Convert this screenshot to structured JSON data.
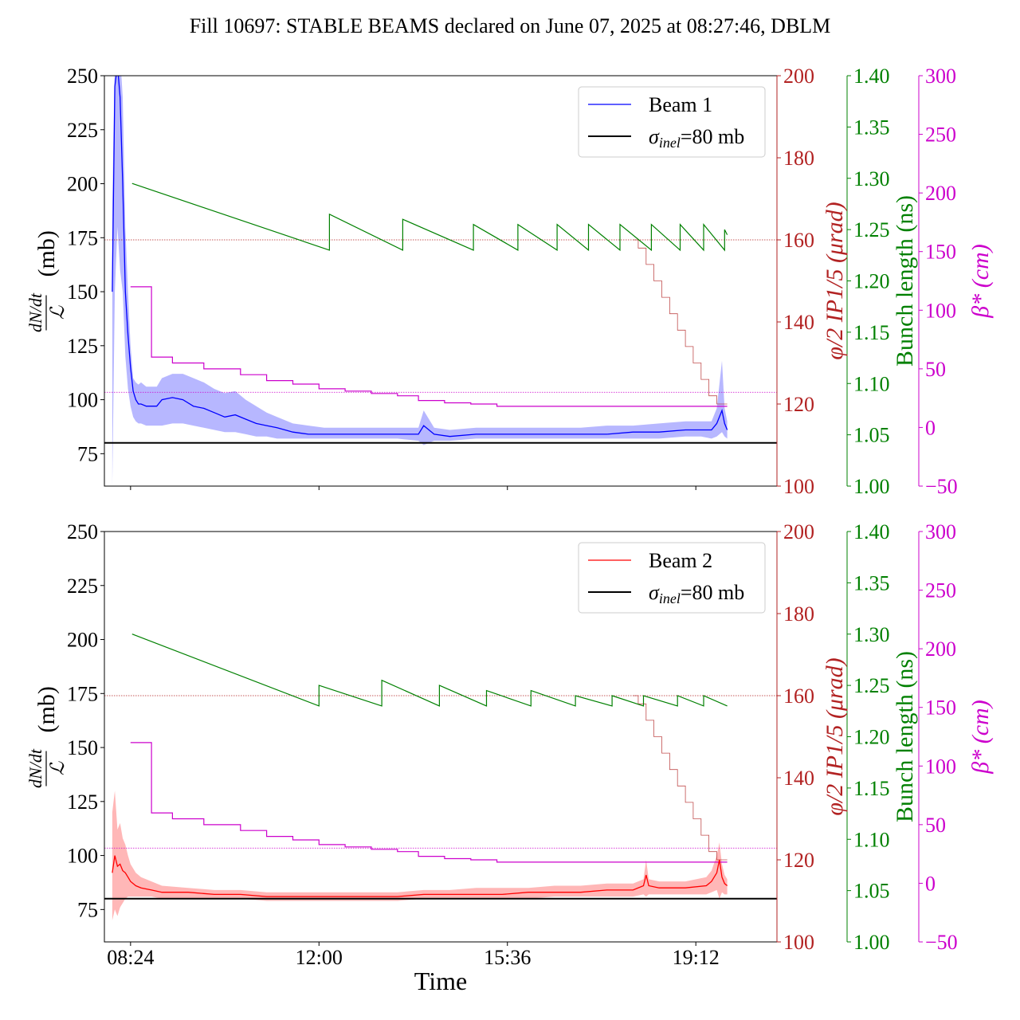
{
  "title": "Fill 10697: STABLE BEAMS declared on June 07, 2025 at 08:27:46, DBLM",
  "xlabel": "Time",
  "xtick_labels": [
    "08:24",
    "12:00",
    "15:36",
    "19:12"
  ],
  "colors": {
    "beam1": "#0000ff",
    "beam1_band": "#9999ff",
    "beam2": "#ff0000",
    "beam2_band": "#ff9999",
    "sigma": "#000000",
    "crossing": "#b22222",
    "bunch": "#008000",
    "beta": "#cc00cc"
  },
  "chart_data": [
    {
      "panel": "top",
      "type": "line",
      "x_unit": "hours (decimal time of day)",
      "xlim": [
        7.9,
        20.75
      ],
      "xticks": [
        8.4,
        12.0,
        15.6,
        19.2
      ],
      "ylabel": "dN/dt / L (mb)",
      "ylim": [
        60,
        250
      ],
      "yticks": [
        75,
        100,
        125,
        150,
        175,
        200,
        225,
        250
      ],
      "legend": {
        "placement": "top-right",
        "beam_label": "Beam 1",
        "sigma_label": "=80 mb"
      },
      "sigma_inel": 80,
      "beam": {
        "name": "Beam 1",
        "x": [
          8.05,
          8.1,
          8.15,
          8.2,
          8.25,
          8.3,
          8.35,
          8.4,
          8.45,
          8.5,
          8.55,
          8.6,
          8.7,
          8.8,
          8.9,
          9.0,
          9.2,
          9.4,
          9.6,
          9.8,
          10.0,
          10.2,
          10.4,
          10.6,
          10.8,
          11.0,
          11.2,
          11.5,
          11.8,
          12.1,
          12.5,
          13.0,
          13.5,
          13.9,
          14.0,
          14.2,
          14.5,
          15.0,
          15.5,
          16.0,
          16.5,
          17.0,
          17.5,
          18.0,
          18.5,
          19.0,
          19.3,
          19.5,
          19.6,
          19.7,
          19.75,
          19.8
        ],
        "values": [
          150,
          245,
          255,
          240,
          200,
          150,
          130,
          115,
          104,
          100,
          98,
          98,
          97,
          97,
          97,
          100,
          101,
          100,
          97,
          96,
          94,
          92,
          93,
          91,
          89,
          88,
          87,
          85,
          84,
          84,
          84,
          84,
          84,
          84,
          88,
          84,
          83,
          84,
          84,
          84,
          84,
          84,
          84,
          85,
          85,
          86,
          86,
          86,
          89,
          95,
          89,
          86
        ],
        "band_upper": [
          190,
          260,
          260,
          260,
          240,
          180,
          150,
          125,
          110,
          108,
          107,
          108,
          106,
          106,
          106,
          110,
          112,
          112,
          110,
          108,
          105,
          103,
          104,
          100,
          97,
          94,
          92,
          89,
          88,
          87,
          87,
          87,
          87,
          87,
          95,
          87,
          86,
          87,
          87,
          87,
          87,
          87,
          88,
          88,
          89,
          90,
          90,
          90,
          96,
          118,
          96,
          90
        ],
        "band_lower": [
          60,
          150,
          180,
          160,
          150,
          120,
          105,
          97,
          92,
          90,
          89,
          89,
          88,
          88,
          88,
          88,
          89,
          89,
          88,
          87,
          86,
          85,
          85,
          84,
          83,
          83,
          82,
          82,
          82,
          82,
          82,
          82,
          82,
          81,
          79,
          81,
          81,
          82,
          82,
          82,
          82,
          82,
          82,
          82,
          82,
          83,
          83,
          82,
          83,
          85,
          83,
          82
        ]
      },
      "crossing_angle": {
        "axis_label": "φ/2 IP1/5 (μrad)",
        "ylim": [
          100,
          200
        ],
        "yticks": [
          100,
          120,
          140,
          160,
          180,
          200
        ],
        "reference": 160,
        "x": [
          18.0,
          18.1,
          18.25,
          18.4,
          18.55,
          18.7,
          18.85,
          19.0,
          19.15,
          19.3,
          19.45,
          19.6,
          19.75,
          19.8
        ],
        "values": [
          160,
          158,
          154,
          150,
          146,
          142,
          138,
          134,
          130,
          126,
          122,
          120,
          120,
          120
        ]
      },
      "bunch_length": {
        "axis_label": "Bunch length (ns)",
        "ylim": [
          1.0,
          1.4
        ],
        "yticks": [
          1.0,
          1.05,
          1.1,
          1.15,
          1.2,
          1.25,
          1.3,
          1.35,
          1.4
        ],
        "segments": [
          {
            "x": [
              8.43,
              12.2
            ],
            "values": [
              1.295,
              1.23
            ]
          },
          {
            "x": [
              12.2,
              13.6
            ],
            "values": [
              1.265,
              1.23
            ]
          },
          {
            "x": [
              13.6,
              14.95
            ],
            "values": [
              1.26,
              1.23
            ]
          },
          {
            "x": [
              14.95,
              15.8
            ],
            "values": [
              1.255,
              1.23
            ]
          },
          {
            "x": [
              15.8,
              16.55
            ],
            "values": [
              1.255,
              1.23
            ]
          },
          {
            "x": [
              16.55,
              17.15
            ],
            "values": [
              1.255,
              1.23
            ]
          },
          {
            "x": [
              17.15,
              17.75
            ],
            "values": [
              1.255,
              1.23
            ]
          },
          {
            "x": [
              17.75,
              18.35
            ],
            "values": [
              1.255,
              1.23
            ]
          },
          {
            "x": [
              18.35,
              18.9
            ],
            "values": [
              1.255,
              1.23
            ]
          },
          {
            "x": [
              18.9,
              19.35
            ],
            "values": [
              1.255,
              1.23
            ]
          },
          {
            "x": [
              19.35,
              19.75
            ],
            "values": [
              1.255,
              1.23
            ]
          },
          {
            "x": [
              19.75,
              19.8
            ],
            "values": [
              1.25,
              1.245
            ]
          }
        ]
      },
      "beta_star": {
        "axis_label": "β* (cm)",
        "ylim": [
          -50,
          300
        ],
        "yticks": [
          -50,
          0,
          50,
          100,
          150,
          200,
          250,
          300
        ],
        "reference": 30,
        "x": [
          8.4,
          8.8,
          9.2,
          9.8,
          10.5,
          11.0,
          11.5,
          12.0,
          12.5,
          13.0,
          13.5,
          13.9,
          14.4,
          14.9,
          15.4,
          19.8
        ],
        "values": [
          120,
          60,
          55,
          50,
          45,
          40,
          37,
          33,
          31,
          29,
          27,
          23,
          21,
          20,
          18,
          18
        ]
      }
    },
    {
      "panel": "bottom",
      "type": "line",
      "x_unit": "hours (decimal time of day)",
      "xlim": [
        7.9,
        20.75
      ],
      "xticks": [
        8.4,
        12.0,
        15.6,
        19.2
      ],
      "ylabel": "dN/dt / L (mb)",
      "ylim": [
        60,
        250
      ],
      "yticks": [
        75,
        100,
        125,
        150,
        175,
        200,
        225,
        250
      ],
      "legend": {
        "placement": "top-right",
        "beam_label": "Beam 2",
        "sigma_label": "=80 mb"
      },
      "sigma_inel": 80,
      "beam": {
        "name": "Beam 2",
        "x": [
          8.05,
          8.1,
          8.15,
          8.2,
          8.25,
          8.3,
          8.35,
          8.4,
          8.5,
          8.6,
          8.8,
          9.0,
          9.5,
          10.0,
          10.5,
          11.0,
          11.5,
          12.0,
          12.5,
          13.0,
          13.5,
          14.0,
          14.5,
          15.0,
          15.5,
          16.0,
          16.5,
          17.0,
          17.5,
          18.0,
          18.2,
          18.25,
          18.3,
          18.5,
          19.0,
          19.4,
          19.5,
          19.6,
          19.65,
          19.7,
          19.75,
          19.8
        ],
        "values": [
          92,
          100,
          95,
          96,
          93,
          92,
          90,
          88,
          86,
          85,
          84,
          83,
          83,
          82,
          82,
          81,
          81,
          81,
          81,
          81,
          81,
          82,
          82,
          82,
          82,
          83,
          83,
          83,
          84,
          84,
          86,
          91,
          86,
          85,
          85,
          86,
          88,
          92,
          98,
          90,
          87,
          86
        ],
        "band_upper": [
          120,
          130,
          112,
          115,
          108,
          105,
          100,
          96,
          92,
          90,
          88,
          86,
          85,
          84,
          84,
          83,
          83,
          83,
          83,
          83,
          83,
          84,
          84,
          85,
          85,
          85,
          86,
          86,
          87,
          87,
          89,
          98,
          89,
          88,
          88,
          90,
          93,
          100,
          106,
          96,
          91,
          89
        ],
        "band_lower": [
          70,
          75,
          72,
          76,
          78,
          80,
          81,
          81,
          81,
          81,
          81,
          80,
          80,
          80,
          80,
          79,
          79,
          79,
          79,
          79,
          79,
          80,
          80,
          80,
          80,
          80,
          81,
          81,
          81,
          81,
          82,
          81,
          82,
          82,
          82,
          82,
          83,
          84,
          80,
          83,
          82,
          82
        ]
      },
      "crossing_angle": {
        "axis_label": "φ/2 IP1/5 (μrad)",
        "ylim": [
          100,
          200
        ],
        "yticks": [
          100,
          120,
          140,
          160,
          180,
          200
        ],
        "reference": 160,
        "x": [
          18.0,
          18.1,
          18.25,
          18.4,
          18.55,
          18.7,
          18.85,
          19.0,
          19.15,
          19.3,
          19.45,
          19.6,
          19.75,
          19.8
        ],
        "values": [
          160,
          158,
          154,
          150,
          146,
          142,
          138,
          134,
          130,
          126,
          122,
          120,
          120,
          120
        ]
      },
      "bunch_length": {
        "axis_label": "Bunch length (ns)",
        "ylim": [
          1.0,
          1.4
        ],
        "yticks": [
          1.0,
          1.05,
          1.1,
          1.15,
          1.2,
          1.25,
          1.3,
          1.35,
          1.4
        ],
        "segments": [
          {
            "x": [
              8.43,
              12.0
            ],
            "values": [
              1.3,
              1.23
            ]
          },
          {
            "x": [
              12.0,
              13.2
            ],
            "values": [
              1.25,
              1.23
            ]
          },
          {
            "x": [
              13.2,
              14.3
            ],
            "values": [
              1.255,
              1.23
            ]
          },
          {
            "x": [
              14.3,
              15.2
            ],
            "values": [
              1.25,
              1.23
            ]
          },
          {
            "x": [
              15.2,
              16.05
            ],
            "values": [
              1.245,
              1.23
            ]
          },
          {
            "x": [
              16.05,
              16.9
            ],
            "values": [
              1.245,
              1.23
            ]
          },
          {
            "x": [
              16.9,
              17.6
            ],
            "values": [
              1.24,
              1.23
            ]
          },
          {
            "x": [
              17.6,
              18.2
            ],
            "values": [
              1.24,
              1.23
            ]
          },
          {
            "x": [
              18.2,
              18.85
            ],
            "values": [
              1.24,
              1.23
            ]
          },
          {
            "x": [
              18.85,
              19.35
            ],
            "values": [
              1.24,
              1.23
            ]
          },
          {
            "x": [
              19.35,
              19.8
            ],
            "values": [
              1.24,
              1.23
            ]
          }
        ]
      },
      "beta_star": {
        "axis_label": "β* (cm)",
        "ylim": [
          -50,
          300
        ],
        "yticks": [
          -50,
          0,
          50,
          100,
          150,
          200,
          250,
          300
        ],
        "reference": 30,
        "x": [
          8.4,
          8.8,
          9.2,
          9.8,
          10.5,
          11.0,
          11.5,
          12.0,
          12.5,
          13.0,
          13.5,
          13.9,
          14.4,
          14.9,
          15.4,
          19.8
        ],
        "values": [
          120,
          60,
          55,
          50,
          45,
          40,
          37,
          33,
          31,
          29,
          27,
          23,
          21,
          20,
          18,
          18
        ]
      }
    }
  ]
}
